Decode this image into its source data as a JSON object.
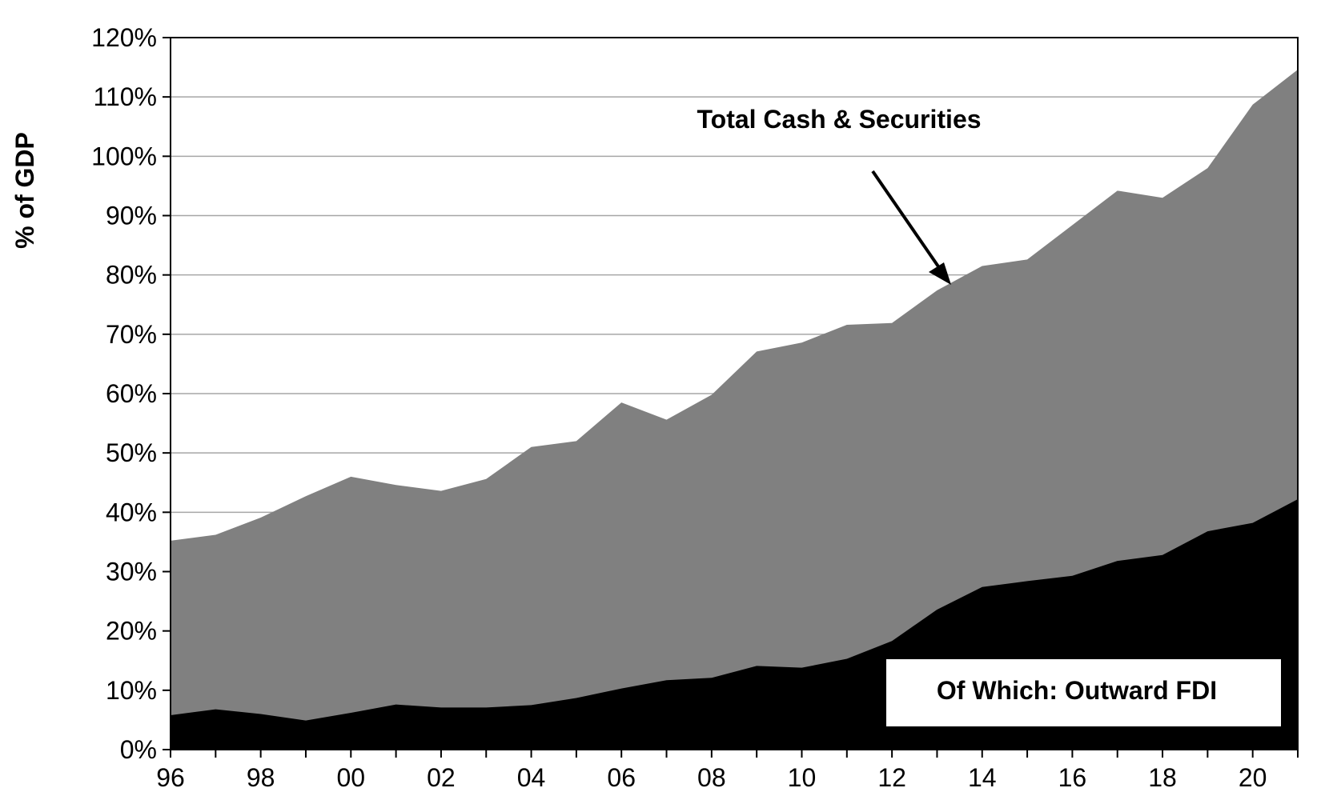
{
  "chart_data": {
    "type": "area",
    "ylabel": "% of GDP",
    "ylim": [
      0,
      120
    ],
    "yticks": [
      "0%",
      "10%",
      "20%",
      "30%",
      "40%",
      "50%",
      "60%",
      "70%",
      "80%",
      "90%",
      "100%",
      "110%",
      "120%"
    ],
    "xlim": [
      1996,
      2021
    ],
    "xticks": [
      "96",
      "98",
      "00",
      "02",
      "04",
      "06",
      "08",
      "10",
      "12",
      "14",
      "16",
      "18",
      "20"
    ],
    "grid": "horizontal",
    "x": [
      1996,
      1997,
      1998,
      1999,
      2000,
      2001,
      2002,
      2003,
      2004,
      2005,
      2006,
      2007,
      2008,
      2009,
      2010,
      2011,
      2012,
      2013,
      2014,
      2015,
      2016,
      2017,
      2018,
      2019,
      2020,
      2021
    ],
    "series": [
      {
        "name": "Total Cash & Securities",
        "color": "#808080",
        "values": [
          35.2,
          36.2,
          39.1,
          42.7,
          46.0,
          44.6,
          43.6,
          45.6,
          51.0,
          52.0,
          58.5,
          55.6,
          59.8,
          67.1,
          68.6,
          71.6,
          71.9,
          77.4,
          81.5,
          82.6,
          88.4,
          94.2,
          93.0,
          98.0,
          108.7,
          114.6
        ]
      },
      {
        "name": "Of Which: Outward FDI",
        "color": "#000000",
        "values": [
          5.8,
          6.8,
          6.0,
          4.9,
          6.2,
          7.6,
          7.1,
          7.1,
          7.5,
          8.7,
          10.3,
          11.7,
          12.1,
          14.1,
          13.8,
          15.3,
          18.3,
          23.6,
          27.4,
          28.4,
          29.3,
          31.8,
          32.8,
          36.8,
          38.2,
          42.2
        ]
      }
    ],
    "annotations": [
      "Total Cash & Securities",
      "Of Which: Outward FDI"
    ]
  }
}
